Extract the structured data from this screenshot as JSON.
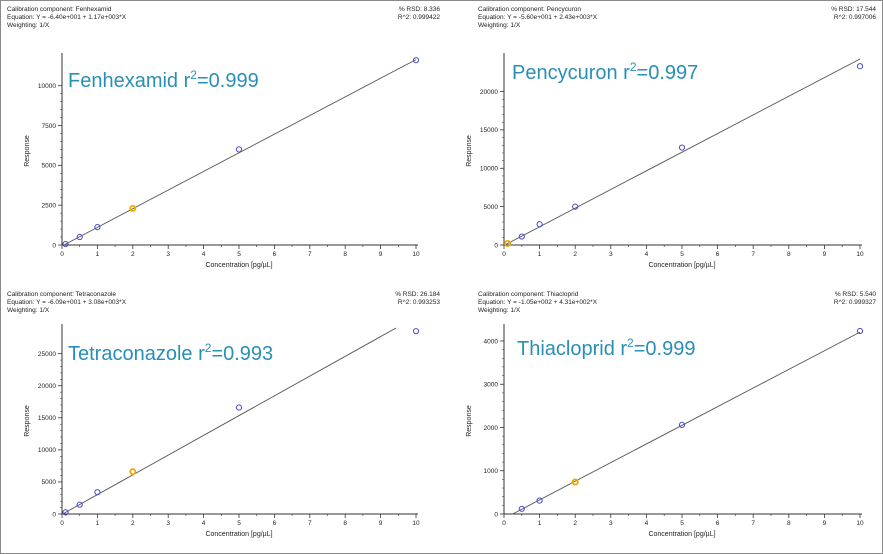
{
  "chart_data": [
    {
      "type": "scatter",
      "header": {
        "component": "Calibration component: Fenhexamid",
        "equation": "Equation: Y = -6.40e+001 + 1.17e+003*X",
        "weighting": "Weighting: 1/X",
        "rsd": "% RSD: 8.336",
        "r2": "R^2: 0.999422"
      },
      "title": "Fenhexamid r",
      "title_sup": "2",
      "title_value": "=0.999",
      "xlabel": "Concentration [pg/µL]",
      "ylabel": "Response",
      "xlim": [
        0,
        10
      ],
      "ylim": [
        0,
        11800
      ],
      "xticks": [
        0,
        1,
        2,
        3,
        4,
        5,
        6,
        7,
        8,
        9,
        10
      ],
      "yticks": [
        0,
        2500,
        5000,
        7500,
        10000
      ],
      "fit": {
        "intercept": -64,
        "slope": 1170
      },
      "points": [
        {
          "x": 0.1,
          "y": 60,
          "color": "#4a4acd"
        },
        {
          "x": 0.5,
          "y": 500,
          "color": "#4a4acd"
        },
        {
          "x": 1,
          "y": 1120,
          "color": "#4a4acd"
        },
        {
          "x": 2,
          "y": 2300,
          "color": "#f0a800"
        },
        {
          "x": 5,
          "y": 6000,
          "color": "#4a4acd"
        },
        {
          "x": 10,
          "y": 11600,
          "color": "#4a4acd"
        }
      ]
    },
    {
      "type": "scatter",
      "header": {
        "component": "Calibration component: Pencycuron",
        "equation": "Equation: Y = -5.60e+001 + 2.43e+003*X",
        "weighting": "Weighting: 1/X",
        "rsd": "% RSD: 17.544",
        "r2": "R^2: 0.997006"
      },
      "title": "Pencycuron r",
      "title_sup": "2",
      "title_value": "=0.997",
      "xlabel": "Concentration [pg/µL]",
      "ylabel": "Response",
      "xlim": [
        0,
        10
      ],
      "ylim": [
        0,
        24500
      ],
      "xticks": [
        0,
        1,
        2,
        3,
        4,
        5,
        6,
        7,
        8,
        9,
        10
      ],
      "yticks": [
        0,
        5000,
        10000,
        15000,
        20000
      ],
      "fit": {
        "intercept": -56,
        "slope": 2430
      },
      "points": [
        {
          "x": 0.1,
          "y": 200,
          "color": "#f0a800"
        },
        {
          "x": 0.5,
          "y": 1100,
          "color": "#4a4acd"
        },
        {
          "x": 1,
          "y": 2700,
          "color": "#4a4acd"
        },
        {
          "x": 2,
          "y": 5000,
          "color": "#4a4acd"
        },
        {
          "x": 5,
          "y": 12700,
          "color": "#4a4acd"
        },
        {
          "x": 10,
          "y": 23300,
          "color": "#4a4acd"
        }
      ]
    },
    {
      "type": "scatter",
      "header": {
        "component": "Calibration component: Tetraconazole",
        "equation": "Equation: Y = -6.09e+001 + 3.08e+003*X",
        "weighting": "Weighting: 1/X",
        "rsd": "% RSD: 26.184",
        "r2": "R^2: 0.993253"
      },
      "title": "Tetraconazole r",
      "title_sup": "2",
      "title_value": "=0.993",
      "xlabel": "Concentration [pg/µL]",
      "ylabel": "Response",
      "xlim": [
        0,
        10
      ],
      "ylim": [
        0,
        29000
      ],
      "xticks": [
        0,
        1,
        2,
        3,
        4,
        5,
        6,
        7,
        8,
        9,
        10
      ],
      "yticks": [
        0,
        5000,
        10000,
        15000,
        20000,
        25000
      ],
      "fit": {
        "intercept": -60.9,
        "slope": 3080
      },
      "points": [
        {
          "x": 0.1,
          "y": 250,
          "color": "#4a4acd"
        },
        {
          "x": 0.5,
          "y": 1450,
          "color": "#4a4acd"
        },
        {
          "x": 1,
          "y": 3400,
          "color": "#4a4acd"
        },
        {
          "x": 2,
          "y": 6600,
          "color": "#f0a800"
        },
        {
          "x": 5,
          "y": 16600,
          "color": "#4a4acd"
        },
        {
          "x": 10,
          "y": 28500,
          "color": "#4a4acd"
        }
      ]
    },
    {
      "type": "scatter",
      "header": {
        "component": "Calibration component: Thiacloprid",
        "equation": "Equation: Y = -1.05e+002 + 4.31e+002*X",
        "weighting": "Weighting: 1/X",
        "rsd": "% RSD: 5.540",
        "r2": "R^2: 0.999327"
      },
      "title": "Thiacloprid r",
      "title_sup": "2",
      "title_value": "=0.999",
      "xlabel": "Concentration [pg/µL]",
      "ylabel": "Response",
      "xlim": [
        0,
        10
      ],
      "ylim": [
        0,
        4300
      ],
      "xticks": [
        0,
        1,
        2,
        3,
        4,
        5,
        6,
        7,
        8,
        9,
        10
      ],
      "yticks": [
        0,
        1000,
        2000,
        3000,
        4000
      ],
      "fit": {
        "intercept": -105,
        "slope": 431
      },
      "points": [
        {
          "x": 0.5,
          "y": 120,
          "color": "#4a4acd"
        },
        {
          "x": 1,
          "y": 310,
          "color": "#4a4acd"
        },
        {
          "x": 2,
          "y": 740,
          "color": "#f0a800"
        },
        {
          "x": 5,
          "y": 2060,
          "color": "#4a4acd"
        },
        {
          "x": 10,
          "y": 4230,
          "color": "#4a4acd"
        }
      ]
    }
  ],
  "colors": {
    "title": "#2a8fb5",
    "axis": "#333333",
    "fit_line": "#555555"
  }
}
